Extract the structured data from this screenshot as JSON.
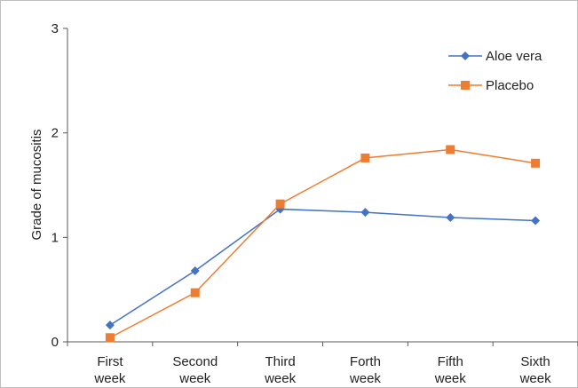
{
  "chart_data": {
    "type": "line",
    "title": "",
    "xlabel": "",
    "ylabel": "Grade of mucositis",
    "categories": [
      [
        "First",
        "week"
      ],
      [
        "Second",
        "week"
      ],
      [
        "Third",
        "week"
      ],
      [
        "Forth",
        "week"
      ],
      [
        "Fifth",
        "week"
      ],
      [
        "Sixth",
        "week"
      ]
    ],
    "ylim": [
      0,
      3
    ],
    "yticks": [
      "0",
      "1",
      "2",
      "3"
    ],
    "grid": false,
    "legend_position": "top-right",
    "series": [
      {
        "name": "Aloe vera",
        "values": [
          0.16,
          0.68,
          1.27,
          1.24,
          1.19,
          1.16
        ],
        "color": "#4472C4",
        "marker": "diamond"
      },
      {
        "name": "Placebo",
        "values": [
          0.04,
          0.47,
          1.32,
          1.76,
          1.84,
          1.71
        ],
        "color": "#ED7D31",
        "marker": "square"
      }
    ]
  }
}
